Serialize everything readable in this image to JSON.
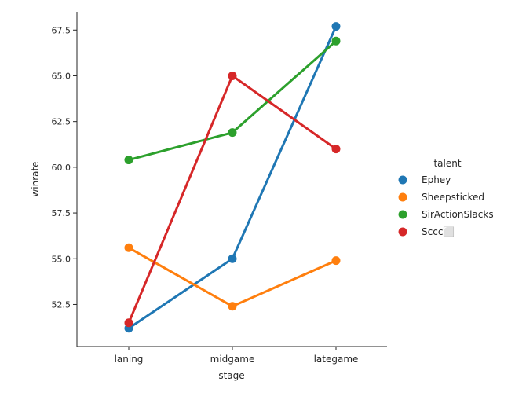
{
  "chart_data": {
    "type": "line",
    "title": "",
    "xlabel": "stage",
    "ylabel": "winrate",
    "categories": [
      "laning",
      "midgame",
      "lategame"
    ],
    "ylim": [
      50.2,
      68.5
    ],
    "yticks": [
      "52.5",
      "55.0",
      "57.5",
      "60.0",
      "62.5",
      "65.0",
      "67.5"
    ],
    "grid": false,
    "legend": {
      "title": "talent",
      "placement": "right"
    },
    "series": [
      {
        "name": "Ephey",
        "color": "#1f77b4",
        "values": [
          51.2,
          55.0,
          67.7
        ]
      },
      {
        "name": "Sheepsticked",
        "color": "#ff7f0e",
        "values": [
          55.6,
          52.4,
          54.9
        ]
      },
      {
        "name": "SirActionSlacks",
        "color": "#2ca02c",
        "values": [
          60.4,
          61.9,
          66.9
        ]
      },
      {
        "name": "Sccc⬜",
        "color": "#d62728",
        "values": [
          51.5,
          65.0,
          61.0
        ]
      }
    ]
  }
}
